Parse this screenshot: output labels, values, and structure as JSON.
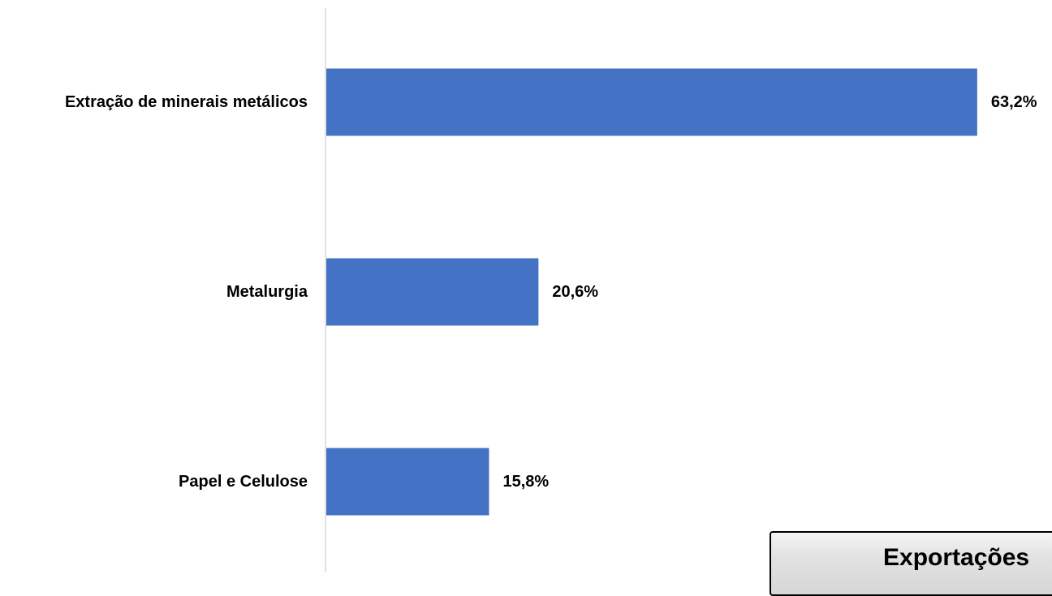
{
  "chart_data": {
    "type": "bar",
    "orientation": "horizontal",
    "categories": [
      "Extração de minerais metálicos",
      "Metalurgia",
      "Papel e Celulose"
    ],
    "values": [
      63.2,
      20.6,
      15.8
    ],
    "value_labels": [
      "63,2%",
      "20,6%",
      "15,8%"
    ],
    "unit": "%",
    "xlim": [
      0,
      64
    ],
    "bar_color": "#4472C4",
    "axis_color": "#D9D9D9",
    "grid": false,
    "legend": "none"
  },
  "overlay": {
    "text": "Exportações"
  }
}
